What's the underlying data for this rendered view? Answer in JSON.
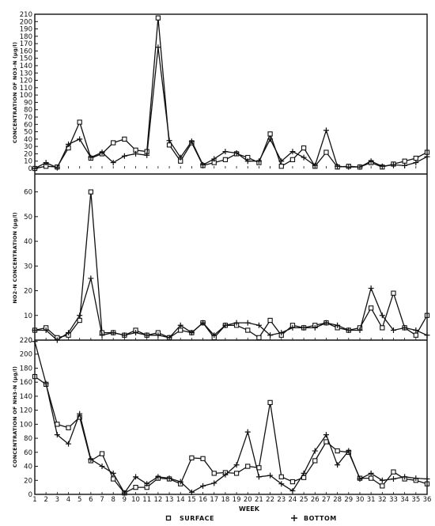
{
  "figure": {
    "xlabel": "WEEK",
    "legend": [
      {
        "symbol": "square",
        "label": "SURFACE"
      },
      {
        "symbol": "plus",
        "label": "BOTTOM"
      }
    ]
  },
  "chart_data": [
    {
      "type": "line",
      "ylabel": "CONCENTRATION OF NO3-N (µg/l)",
      "ylim": [
        0,
        210
      ],
      "yticks": [
        0,
        10,
        20,
        30,
        40,
        50,
        60,
        70,
        80,
        90,
        100,
        110,
        120,
        130,
        140,
        150,
        160,
        170,
        180,
        190,
        200,
        210
      ],
      "x": [
        1,
        2,
        3,
        4,
        5,
        6,
        7,
        8,
        9,
        10,
        11,
        12,
        13,
        14,
        15,
        16,
        17,
        18,
        19,
        20,
        21,
        22,
        23,
        24,
        25,
        26,
        27,
        28,
        29,
        30,
        31,
        32,
        33,
        34,
        35,
        36
      ],
      "series": [
        {
          "name": "SURFACE",
          "marker": "square",
          "values": [
            0,
            3,
            2,
            28,
            63,
            14,
            20,
            35,
            40,
            25,
            23,
            205,
            32,
            10,
            35,
            4,
            8,
            12,
            20,
            15,
            8,
            47,
            3,
            12,
            28,
            3,
            22,
            2,
            3,
            2,
            8,
            2,
            6,
            10,
            14,
            22
          ]
        },
        {
          "name": "BOTTOM",
          "marker": "plus",
          "values": [
            0,
            8,
            1,
            33,
            40,
            15,
            22,
            8,
            17,
            20,
            18,
            165,
            38,
            15,
            37,
            5,
            13,
            23,
            21,
            10,
            10,
            40,
            10,
            23,
            15,
            4,
            52,
            3,
            2,
            2,
            10,
            3,
            5,
            4,
            8,
            16
          ]
        }
      ]
    },
    {
      "type": "line",
      "ylabel": "NO2-N CONCENTRATION (µg/l)",
      "ylim": [
        0,
        65
      ],
      "yticks": [
        0,
        10,
        20,
        30,
        40,
        50,
        60
      ],
      "x": [
        1,
        2,
        3,
        4,
        5,
        6,
        7,
        8,
        9,
        10,
        11,
        12,
        13,
        14,
        15,
        16,
        17,
        18,
        19,
        20,
        21,
        22,
        23,
        24,
        25,
        26,
        27,
        28,
        29,
        30,
        31,
        32,
        33,
        34,
        35,
        36
      ],
      "series": [
        {
          "name": "SURFACE",
          "marker": "square",
          "values": [
            4,
            5,
            1,
            2,
            8,
            60,
            3,
            3,
            2,
            4,
            2,
            3,
            1,
            4,
            3,
            7,
            1,
            6,
            6,
            4,
            1,
            8,
            2,
            6,
            5,
            6,
            7,
            5,
            4,
            5,
            13,
            5,
            19,
            5,
            2,
            10
          ]
        },
        {
          "name": "BOTTOM",
          "marker": "plus",
          "values": [
            4,
            4,
            0,
            3,
            10,
            25,
            2,
            3,
            2,
            3,
            2,
            2,
            1,
            6,
            3,
            7,
            2,
            6,
            7,
            7,
            6,
            2,
            3,
            5,
            5,
            5,
            7,
            6,
            4,
            4,
            21,
            10,
            4,
            5,
            4,
            2
          ]
        }
      ]
    },
    {
      "type": "line",
      "ylabel": "CONCENTRATION OF NH3-N (µg/l)",
      "ylim": [
        0,
        220
      ],
      "yticks": [
        0,
        20,
        40,
        60,
        80,
        100,
        120,
        140,
        160,
        180,
        200,
        220
      ],
      "x": [
        1,
        2,
        3,
        4,
        5,
        6,
        7,
        8,
        9,
        10,
        11,
        12,
        13,
        14,
        15,
        16,
        17,
        18,
        19,
        20,
        21,
        22,
        23,
        24,
        25,
        26,
        27,
        28,
        29,
        30,
        31,
        32,
        33,
        34,
        35,
        36
      ],
      "series": [
        {
          "name": "SURFACE",
          "marker": "square",
          "values": [
            168,
            157,
            100,
            95,
            110,
            48,
            58,
            22,
            2,
            10,
            10,
            23,
            22,
            15,
            52,
            51,
            30,
            31,
            30,
            40,
            38,
            131,
            25,
            18,
            24,
            48,
            75,
            62,
            60,
            23,
            23,
            12,
            32,
            22,
            20,
            15
          ]
        },
        {
          "name": "BOTTOM",
          "marker": "plus",
          "values": [
            218,
            158,
            85,
            72,
            115,
            50,
            40,
            30,
            2,
            25,
            15,
            25,
            23,
            18,
            3,
            12,
            16,
            28,
            42,
            89,
            25,
            27,
            15,
            5,
            30,
            62,
            85,
            42,
            62,
            22,
            30,
            20,
            22,
            25,
            23,
            22
          ]
        }
      ]
    }
  ]
}
